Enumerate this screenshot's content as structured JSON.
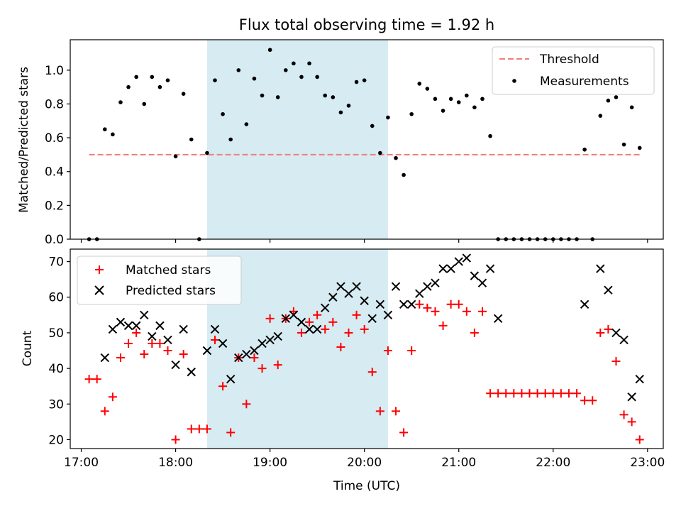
{
  "chart_data": [
    {
      "type": "scatter",
      "title": "Flux total observing time = 1.92 h",
      "ylabel": "Matched/Predicted stars",
      "xlabel": "",
      "xlim": [
        "16:53",
        "23:10"
      ],
      "ylim": [
        0,
        1.18
      ],
      "yticks": [
        0.0,
        0.2,
        0.4,
        0.6,
        0.8,
        1.0
      ],
      "ytick_labels": [
        "0.0",
        "0.2",
        "0.4",
        "0.6",
        "0.8",
        "1.0"
      ],
      "legend": {
        "position": "upper right",
        "entries": [
          "Threshold",
          "Measurements"
        ]
      },
      "highlight_span": [
        "18:20",
        "20:15"
      ],
      "threshold": {
        "name": "Threshold",
        "value": 0.5,
        "x_range": [
          "17:05",
          "22:55"
        ],
        "color": "#f08080"
      },
      "series": [
        {
          "name": "Measurements",
          "color": "#000000",
          "points": [
            [
              "17:05",
              0.0
            ],
            [
              "17:10",
              0.0
            ],
            [
              "17:15",
              0.65
            ],
            [
              "17:20",
              0.62
            ],
            [
              "17:25",
              0.81
            ],
            [
              "17:30",
              0.9
            ],
            [
              "17:35",
              0.96
            ],
            [
              "17:40",
              0.8
            ],
            [
              "17:45",
              0.96
            ],
            [
              "17:50",
              0.9
            ],
            [
              "17:55",
              0.94
            ],
            [
              "18:00",
              0.49
            ],
            [
              "18:05",
              0.86
            ],
            [
              "18:10",
              0.59
            ],
            [
              "18:15",
              0.0
            ],
            [
              "18:20",
              0.51
            ],
            [
              "18:25",
              0.94
            ],
            [
              "18:30",
              0.74
            ],
            [
              "18:35",
              0.59
            ],
            [
              "18:40",
              1.0
            ],
            [
              "18:45",
              0.68
            ],
            [
              "18:50",
              0.95
            ],
            [
              "18:55",
              0.85
            ],
            [
              "19:00",
              1.12
            ],
            [
              "19:05",
              0.84
            ],
            [
              "19:10",
              1.0
            ],
            [
              "19:15",
              1.04
            ],
            [
              "19:20",
              0.96
            ],
            [
              "19:25",
              1.04
            ],
            [
              "19:30",
              0.96
            ],
            [
              "19:35",
              0.85
            ],
            [
              "19:40",
              0.84
            ],
            [
              "19:45",
              0.75
            ],
            [
              "19:50",
              0.79
            ],
            [
              "19:55",
              0.93
            ],
            [
              "20:00",
              0.94
            ],
            [
              "20:05",
              0.67
            ],
            [
              "20:10",
              0.51
            ],
            [
              "20:15",
              0.72
            ],
            [
              "20:20",
              0.48
            ],
            [
              "20:25",
              0.38
            ],
            [
              "20:30",
              0.74
            ],
            [
              "20:35",
              0.92
            ],
            [
              "20:40",
              0.89
            ],
            [
              "20:45",
              0.83
            ],
            [
              "20:50",
              0.76
            ],
            [
              "20:55",
              0.83
            ],
            [
              "21:00",
              0.81
            ],
            [
              "21:05",
              0.85
            ],
            [
              "21:10",
              0.78
            ],
            [
              "21:15",
              0.83
            ],
            [
              "21:20",
              0.61
            ],
            [
              "21:25",
              0.0
            ],
            [
              "21:30",
              0.0
            ],
            [
              "21:35",
              0.0
            ],
            [
              "21:40",
              0.0
            ],
            [
              "21:45",
              0.0
            ],
            [
              "21:50",
              0.0
            ],
            [
              "21:55",
              0.0
            ],
            [
              "22:00",
              0.0
            ],
            [
              "22:05",
              0.0
            ],
            [
              "22:10",
              0.0
            ],
            [
              "22:15",
              0.0
            ],
            [
              "22:20",
              0.53
            ],
            [
              "22:25",
              0.0
            ],
            [
              "22:30",
              0.73
            ],
            [
              "22:35",
              0.82
            ],
            [
              "22:40",
              0.84
            ],
            [
              "22:45",
              0.56
            ],
            [
              "22:50",
              0.78
            ],
            [
              "22:55",
              0.54
            ]
          ]
        }
      ]
    },
    {
      "type": "scatter",
      "title": "",
      "xlabel": "Time (UTC)",
      "ylabel": "Count",
      "xlim": [
        "16:53",
        "23:10"
      ],
      "ylim": [
        17.5,
        73.5
      ],
      "xticks": [
        "17:00",
        "18:00",
        "19:00",
        "20:00",
        "21:00",
        "22:00",
        "23:00"
      ],
      "yticks": [
        20,
        30,
        40,
        50,
        60,
        70
      ],
      "ytick_labels": [
        "20",
        "30",
        "40",
        "50",
        "60",
        "70"
      ],
      "legend": {
        "position": "upper left",
        "entries": [
          "Matched stars",
          "Predicted stars"
        ]
      },
      "highlight_span": [
        "18:20",
        "20:15"
      ],
      "series": [
        {
          "name": "Matched stars",
          "marker": "+",
          "color": "#ff0000",
          "points": [
            [
              "17:05",
              37
            ],
            [
              "17:10",
              37
            ],
            [
              "17:15",
              28
            ],
            [
              "17:20",
              32
            ],
            [
              "17:25",
              43
            ],
            [
              "17:30",
              47
            ],
            [
              "17:35",
              50
            ],
            [
              "17:40",
              44
            ],
            [
              "17:45",
              47
            ],
            [
              "17:50",
              47
            ],
            [
              "17:55",
              45
            ],
            [
              "18:00",
              20
            ],
            [
              "18:05",
              44
            ],
            [
              "18:10",
              23
            ],
            [
              "18:15",
              23
            ],
            [
              "18:20",
              23
            ],
            [
              "18:25",
              48
            ],
            [
              "18:30",
              35
            ],
            [
              "18:35",
              22
            ],
            [
              "18:40",
              43
            ],
            [
              "18:45",
              30
            ],
            [
              "18:50",
              43
            ],
            [
              "18:55",
              40
            ],
            [
              "19:00",
              54
            ],
            [
              "19:05",
              41
            ],
            [
              "19:10",
              54
            ],
            [
              "19:15",
              56
            ],
            [
              "19:20",
              50
            ],
            [
              "19:25",
              53
            ],
            [
              "19:30",
              55
            ],
            [
              "19:35",
              51
            ],
            [
              "19:40",
              53
            ],
            [
              "19:45",
              46
            ],
            [
              "19:50",
              50
            ],
            [
              "19:55",
              55
            ],
            [
              "20:00",
              51
            ],
            [
              "20:05",
              39
            ],
            [
              "20:10",
              28
            ],
            [
              "20:15",
              45
            ],
            [
              "20:20",
              28
            ],
            [
              "20:25",
              22
            ],
            [
              "20:30",
              45
            ],
            [
              "20:35",
              58
            ],
            [
              "20:40",
              57
            ],
            [
              "20:45",
              56
            ],
            [
              "20:50",
              52
            ],
            [
              "20:55",
              58
            ],
            [
              "21:00",
              58
            ],
            [
              "21:05",
              56
            ],
            [
              "21:10",
              50
            ],
            [
              "21:15",
              56
            ],
            [
              "21:20",
              33
            ],
            [
              "21:25",
              33
            ],
            [
              "21:30",
              33
            ],
            [
              "21:35",
              33
            ],
            [
              "21:40",
              33
            ],
            [
              "21:45",
              33
            ],
            [
              "21:50",
              33
            ],
            [
              "21:55",
              33
            ],
            [
              "22:00",
              33
            ],
            [
              "22:05",
              33
            ],
            [
              "22:10",
              33
            ],
            [
              "22:15",
              33
            ],
            [
              "22:20",
              31
            ],
            [
              "22:25",
              31
            ],
            [
              "22:30",
              50
            ],
            [
              "22:35",
              51
            ],
            [
              "22:40",
              42
            ],
            [
              "22:45",
              27
            ],
            [
              "22:50",
              25
            ],
            [
              "22:55",
              20
            ]
          ]
        },
        {
          "name": "Predicted stars",
          "marker": "x",
          "color": "#000000",
          "points": [
            [
              "17:15",
              43
            ],
            [
              "17:20",
              51
            ],
            [
              "17:25",
              53
            ],
            [
              "17:30",
              52
            ],
            [
              "17:35",
              52
            ],
            [
              "17:40",
              55
            ],
            [
              "17:45",
              49
            ],
            [
              "17:50",
              52
            ],
            [
              "17:55",
              48
            ],
            [
              "18:00",
              41
            ],
            [
              "18:05",
              51
            ],
            [
              "18:10",
              39
            ],
            [
              "18:20",
              45
            ],
            [
              "18:25",
              51
            ],
            [
              "18:30",
              47
            ],
            [
              "18:35",
              37
            ],
            [
              "18:40",
              43
            ],
            [
              "18:45",
              44
            ],
            [
              "18:50",
              45
            ],
            [
              "18:55",
              47
            ],
            [
              "19:00",
              48
            ],
            [
              "19:05",
              49
            ],
            [
              "19:10",
              54
            ],
            [
              "19:15",
              55
            ],
            [
              "19:20",
              53
            ],
            [
              "19:25",
              51
            ],
            [
              "19:30",
              51
            ],
            [
              "19:35",
              57
            ],
            [
              "19:40",
              60
            ],
            [
              "19:45",
              63
            ],
            [
              "19:50",
              61
            ],
            [
              "19:55",
              63
            ],
            [
              "20:00",
              59
            ],
            [
              "20:05",
              54
            ],
            [
              "20:10",
              58
            ],
            [
              "20:15",
              55
            ],
            [
              "20:20",
              63
            ],
            [
              "20:25",
              58
            ],
            [
              "20:30",
              58
            ],
            [
              "20:35",
              61
            ],
            [
              "20:40",
              63
            ],
            [
              "20:45",
              64
            ],
            [
              "20:50",
              68
            ],
            [
              "20:55",
              68
            ],
            [
              "21:00",
              70
            ],
            [
              "21:05",
              71
            ],
            [
              "21:10",
              66
            ],
            [
              "21:15",
              64
            ],
            [
              "21:20",
              68
            ],
            [
              "21:25",
              54
            ],
            [
              "22:20",
              58
            ],
            [
              "22:30",
              68
            ],
            [
              "22:35",
              62
            ],
            [
              "22:40",
              50
            ],
            [
              "22:45",
              48
            ],
            [
              "22:50",
              32
            ],
            [
              "22:55",
              37
            ]
          ]
        }
      ]
    }
  ],
  "colors": {
    "highlight": "#add8e6",
    "threshold": "#f08080",
    "matched": "#ff0000",
    "predicted": "#000000"
  }
}
